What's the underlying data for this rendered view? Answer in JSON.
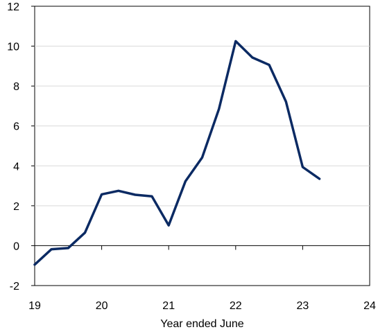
{
  "chart_data": {
    "type": "line",
    "title": "",
    "xlabel": "Year ended June",
    "ylabel": "",
    "xlim": [
      19,
      24
    ],
    "ylim": [
      -2,
      12
    ],
    "x_ticks": [
      19,
      20,
      21,
      22,
      23,
      24
    ],
    "x_tick_labels": [
      "19",
      "20",
      "21",
      "22",
      "23",
      "24"
    ],
    "y_ticks": [
      -2,
      0,
      2,
      4,
      6,
      8,
      10,
      12
    ],
    "y_tick_labels": [
      "-2",
      "0",
      "2",
      "4",
      "6",
      "8",
      "10",
      "12"
    ],
    "grid": "horizontal",
    "legend": "none",
    "series": [
      {
        "color": "#0b2a63",
        "x": [
          19.0,
          19.25,
          19.5,
          19.75,
          20.0,
          20.25,
          20.5,
          20.75,
          21.0,
          21.25,
          21.5,
          21.75,
          22.0,
          22.25,
          22.5,
          22.75,
          23.0,
          23.25
        ],
        "y": [
          -0.95,
          -0.18,
          -0.12,
          0.65,
          2.57,
          2.75,
          2.55,
          2.47,
          1.02,
          3.23,
          4.42,
          6.85,
          10.25,
          9.43,
          9.06,
          7.22,
          3.94,
          3.35
        ]
      }
    ],
    "colors": {
      "line": "#0b2a63",
      "grid": "#d9d9d9",
      "axis": "#000000"
    }
  }
}
